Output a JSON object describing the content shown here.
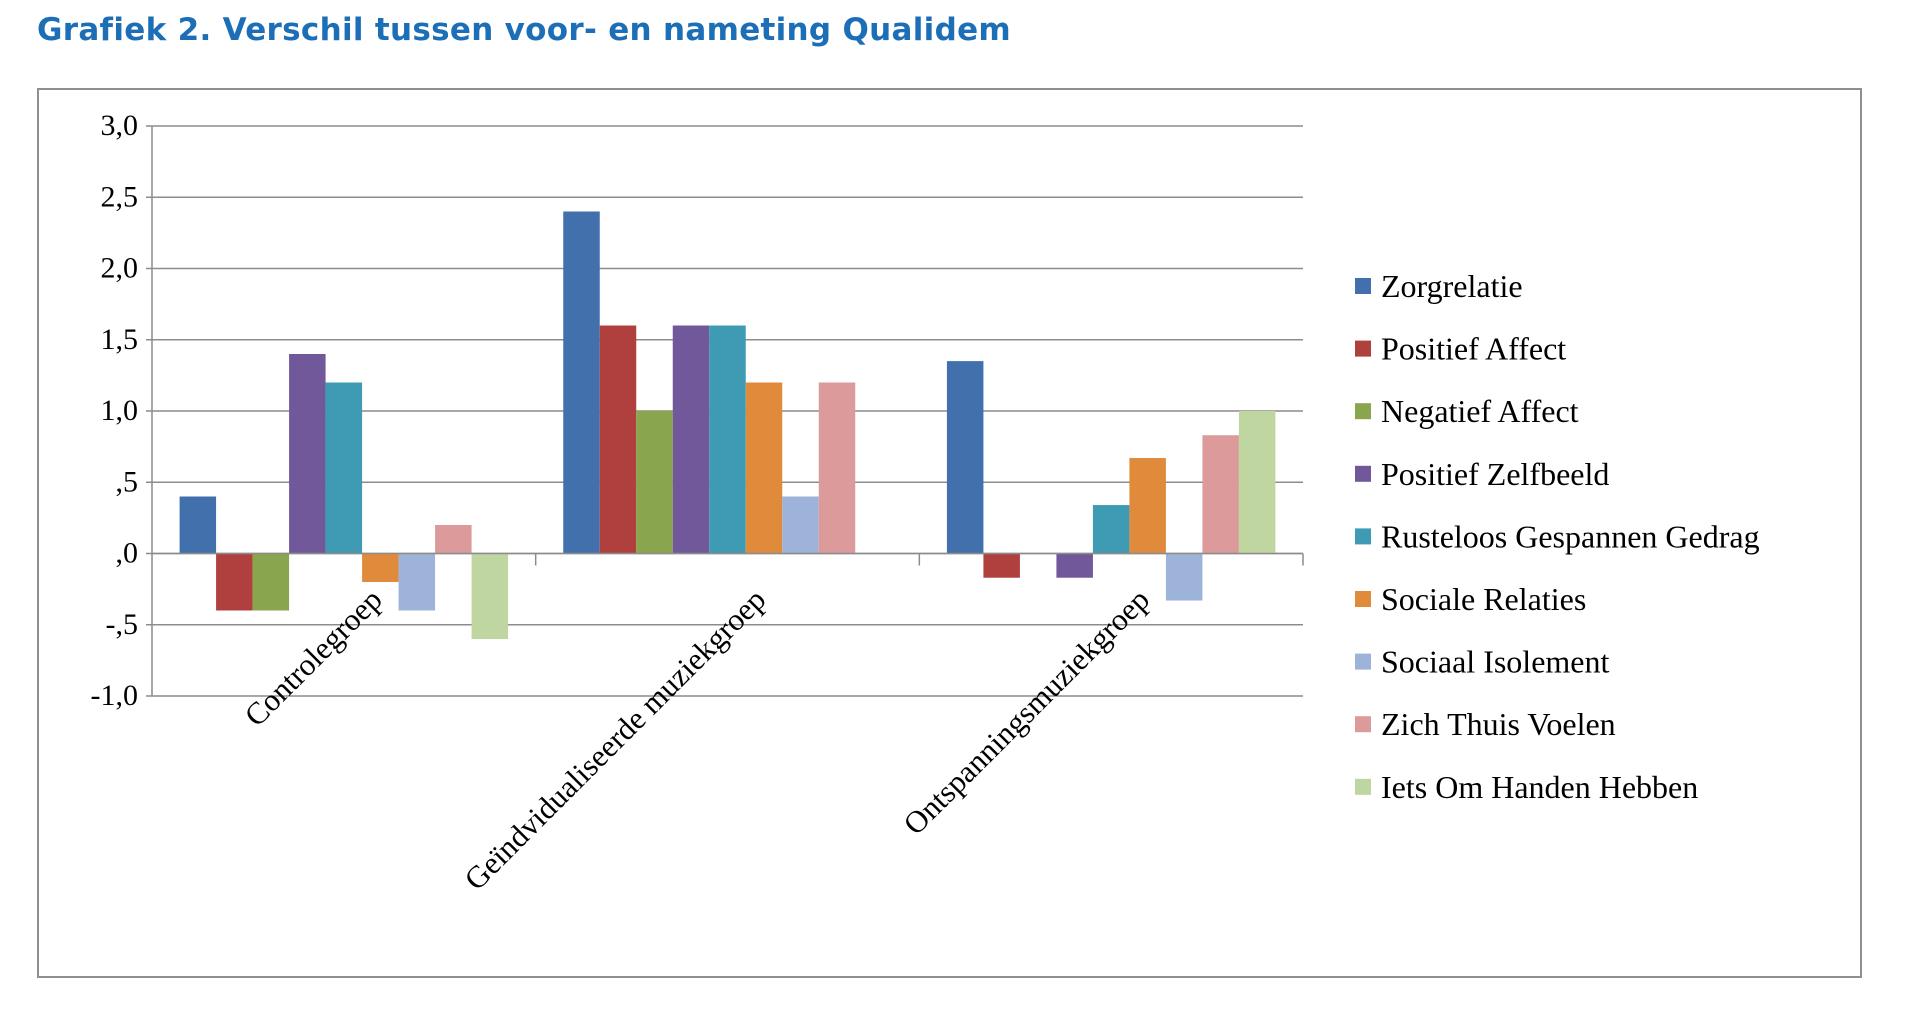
{
  "title": "Grafiek 2. Verschil tussen voor- en nameting Qualidem",
  "chart_data": {
    "type": "bar",
    "categories": [
      "Controlegroep",
      "Geïndvidualiseerde muziekgroep",
      "Ontspanningsmuziekgroep"
    ],
    "y_tick_labels": [
      "3,0",
      "2,5",
      "2,0",
      "1,5",
      "1,0",
      ",5",
      ",0",
      "-,5",
      "-1,0"
    ],
    "ylim": [
      -1.0,
      3.0
    ],
    "grid": true,
    "legend_position": "right",
    "series": [
      {
        "name": "Zorgrelatie",
        "color": "#4170ad",
        "values": [
          0.4,
          2.4,
          1.35
        ]
      },
      {
        "name": "Positief Affect",
        "color": "#b0403d",
        "values": [
          -0.4,
          1.6,
          -0.17
        ]
      },
      {
        "name": "Negatief Affect",
        "color": "#89a54e",
        "values": [
          -0.4,
          1.0,
          0
        ]
      },
      {
        "name": "Positief Zelfbeeld",
        "color": "#71589a",
        "values": [
          1.4,
          1.6,
          -0.17
        ]
      },
      {
        "name": "Rusteloos Gespannen Gedrag",
        "color": "#3f9bb3",
        "values": [
          1.2,
          1.6,
          0.34
        ]
      },
      {
        "name": "Sociale Relaties",
        "color": "#e08a3c",
        "values": [
          -0.2,
          1.2,
          0.67
        ]
      },
      {
        "name": "Sociaal Isolement",
        "color": "#9db3d9",
        "values": [
          -0.4,
          0.4,
          -0.33
        ]
      },
      {
        "name": "Zich Thuis Voelen",
        "color": "#dc9a9a",
        "values": [
          0.2,
          1.2,
          0.83
        ]
      },
      {
        "name": "Iets Om Handen Hebben",
        "color": "#bfd6a0",
        "values": [
          -0.6,
          0,
          1.0
        ]
      }
    ]
  }
}
